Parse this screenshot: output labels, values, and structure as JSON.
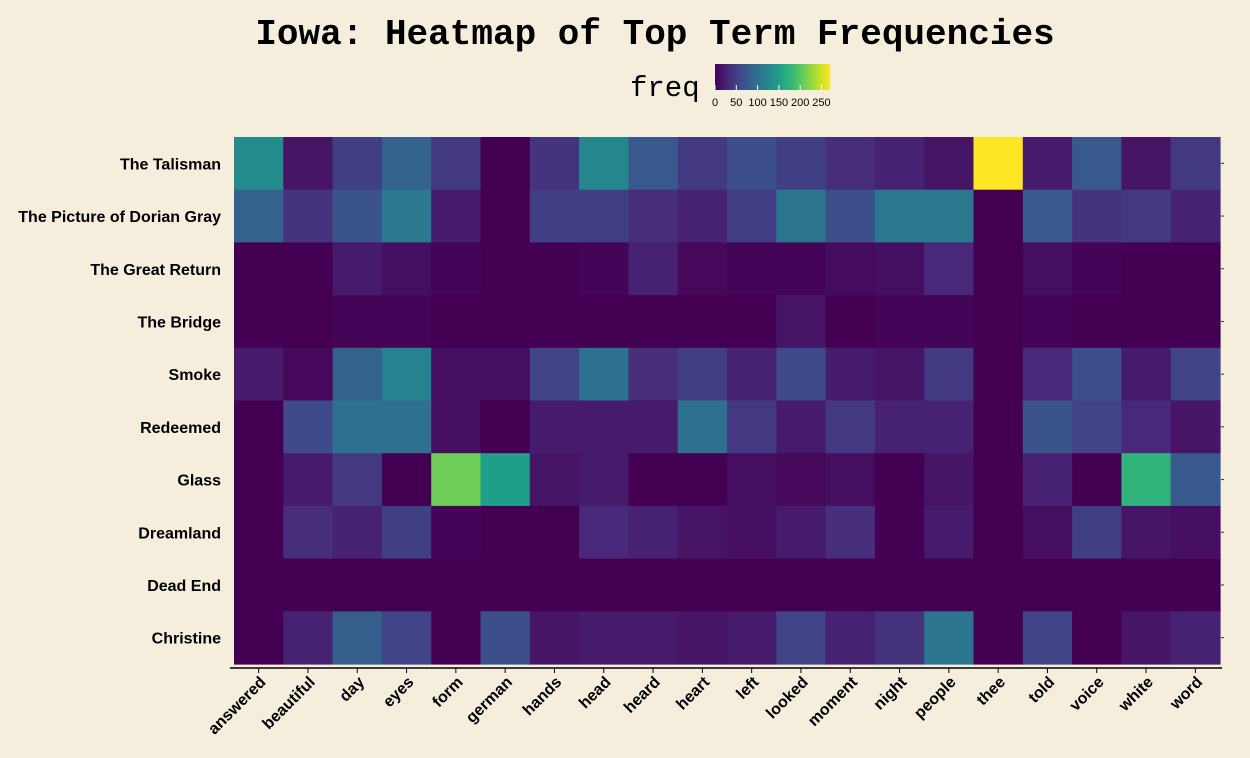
{
  "chart_data": {
    "type": "heatmap",
    "title": "Iowa: Heatmap of Top Term Frequencies",
    "legend": {
      "title": "freq",
      "ticks": [
        0,
        50,
        100,
        150,
        200,
        250
      ],
      "range": [
        0,
        270
      ],
      "placement": "top"
    },
    "colorscale": [
      "#440154",
      "#482878",
      "#3e4a89",
      "#31688e",
      "#26828e",
      "#1f9e89",
      "#35b779",
      "#6ece58",
      "#b5de2b",
      "#fde725"
    ],
    "x_categories": [
      "answered",
      "beautiful",
      "day",
      "eyes",
      "form",
      "german",
      "hands",
      "head",
      "heard",
      "heart",
      "left",
      "looked",
      "moment",
      "night",
      "people",
      "thee",
      "told",
      "voice",
      "white",
      "word"
    ],
    "y_categories": [
      "The Talisman",
      "The Picture of Dorian Gray",
      "The Great Return",
      "The Bridge",
      "Smoke",
      "Redeemed",
      "Glass",
      "Dreamland",
      "Dead End",
      "Christine"
    ],
    "values": [
      [
        130,
        15,
        50,
        85,
        45,
        0,
        40,
        125,
        75,
        45,
        65,
        50,
        35,
        25,
        15,
        270,
        20,
        75,
        15,
        45
      ],
      [
        85,
        40,
        70,
        110,
        20,
        0,
        50,
        50,
        35,
        25,
        50,
        105,
        65,
        110,
        110,
        0,
        75,
        40,
        45,
        25
      ],
      [
        0,
        0,
        20,
        10,
        3,
        0,
        0,
        3,
        25,
        5,
        3,
        3,
        8,
        10,
        30,
        0,
        10,
        3,
        0,
        0
      ],
      [
        0,
        0,
        3,
        3,
        0,
        0,
        0,
        0,
        0,
        0,
        0,
        15,
        0,
        3,
        3,
        0,
        3,
        0,
        0,
        0
      ],
      [
        20,
        5,
        85,
        120,
        10,
        10,
        55,
        100,
        35,
        50,
        25,
        60,
        20,
        15,
        45,
        0,
        30,
        65,
        20,
        55
      ],
      [
        0,
        60,
        100,
        100,
        10,
        0,
        20,
        20,
        20,
        100,
        45,
        20,
        45,
        25,
        25,
        0,
        70,
        55,
        30,
        15
      ],
      [
        0,
        20,
        45,
        0,
        210,
        150,
        15,
        20,
        0,
        0,
        10,
        5,
        10,
        0,
        15,
        0,
        25,
        0,
        175,
        75
      ],
      [
        0,
        35,
        25,
        50,
        3,
        0,
        0,
        30,
        25,
        15,
        10,
        20,
        35,
        0,
        20,
        0,
        10,
        50,
        15,
        10
      ],
      [
        0,
        0,
        0,
        0,
        0,
        0,
        0,
        0,
        0,
        0,
        0,
        0,
        0,
        0,
        0,
        0,
        0,
        0,
        0,
        0
      ],
      [
        0,
        25,
        80,
        55,
        0,
        65,
        15,
        20,
        20,
        15,
        20,
        55,
        25,
        40,
        105,
        0,
        55,
        0,
        15,
        25
      ]
    ]
  }
}
